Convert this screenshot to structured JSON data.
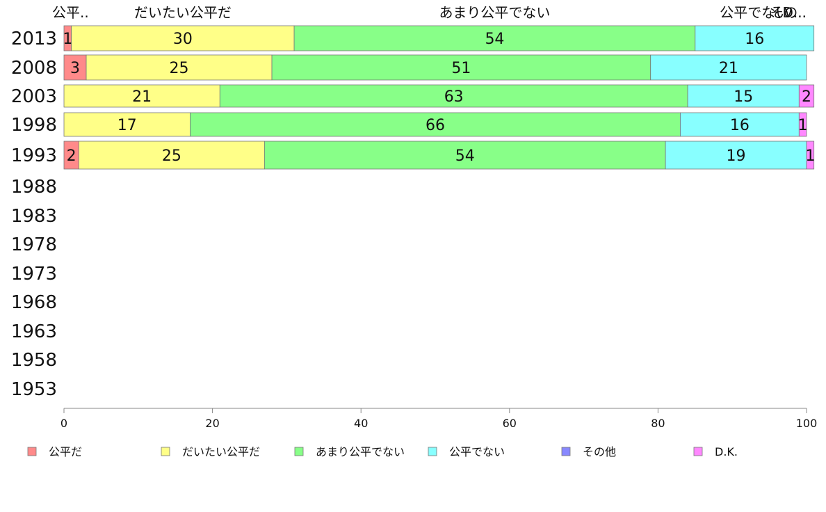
{
  "chart_data": {
    "type": "bar",
    "orientation": "horizontal",
    "stacked": true,
    "title": "",
    "xlabel": "",
    "ylabel": "",
    "xlim": [
      0,
      100
    ],
    "x_ticks": [
      0,
      20,
      40,
      60,
      80,
      100
    ],
    "categories": [
      "2013",
      "2008",
      "2003",
      "1998",
      "1993",
      "1988",
      "1983",
      "1978",
      "1973",
      "1968",
      "1963",
      "1958",
      "1953"
    ],
    "top_labels": [
      "公平..",
      "だいたい公平だ",
      "あまり公平でない",
      "公平でない",
      "その..",
      "D..."
    ],
    "series": [
      {
        "name": "公平だ",
        "color": "#ff8a8a",
        "values": [
          1,
          3,
          0,
          0,
          2,
          null,
          null,
          null,
          null,
          null,
          null,
          null,
          null
        ]
      },
      {
        "name": "だいたい公平だ",
        "color": "#ffff88",
        "values": [
          30,
          25,
          21,
          17,
          25,
          null,
          null,
          null,
          null,
          null,
          null,
          null,
          null
        ]
      },
      {
        "name": "あまり公平でない",
        "color": "#88ff88",
        "values": [
          54,
          51,
          63,
          66,
          54,
          null,
          null,
          null,
          null,
          null,
          null,
          null,
          null
        ]
      },
      {
        "name": "公平でない",
        "color": "#88ffff",
        "values": [
          16,
          21,
          15,
          16,
          19,
          null,
          null,
          null,
          null,
          null,
          null,
          null,
          null
        ]
      },
      {
        "name": "その他",
        "color": "#8888ff",
        "values": [
          0,
          0,
          0,
          0,
          0,
          null,
          null,
          null,
          null,
          null,
          null,
          null,
          null
        ]
      },
      {
        "name": "D.K.",
        "color": "#ff88ff",
        "values": [
          0,
          0,
          2,
          1,
          1,
          null,
          null,
          null,
          null,
          null,
          null,
          null,
          null
        ]
      }
    ],
    "grid": false,
    "legend_position": "bottom"
  }
}
